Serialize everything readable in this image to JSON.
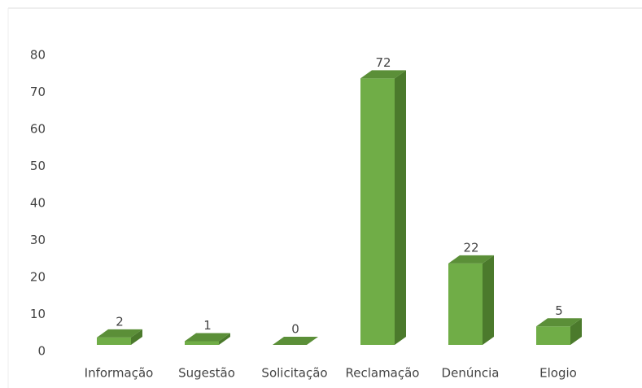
{
  "chart_data": {
    "type": "bar3d",
    "categories": [
      "Informação",
      "Sugestão",
      "Solicitação",
      "Reclamação",
      "Denúncia",
      "Elogio"
    ],
    "values": [
      2,
      1,
      0,
      72,
      22,
      5
    ],
    "color": "#70ad47",
    "ylim": [
      0,
      80
    ],
    "yticks": [
      0,
      10,
      20,
      30,
      40,
      50,
      60,
      70,
      80
    ],
    "grid": false
  }
}
